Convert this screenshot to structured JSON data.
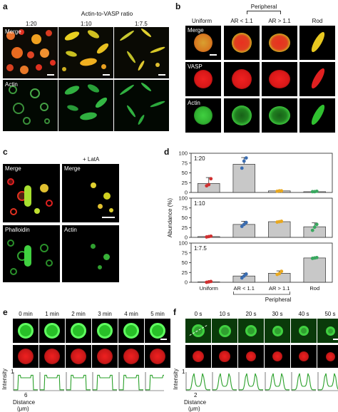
{
  "panel_a": {
    "label": "a",
    "header": "Actin-to-VASP ratio",
    "ratios": [
      "1:20",
      "1:10",
      "1:7.5"
    ],
    "row_labels": [
      "Merge",
      "Actin"
    ]
  },
  "panel_b": {
    "label": "b",
    "group_label": "Peripheral",
    "columns": [
      "Uniform",
      "AR < 1.1",
      "AR > 1.1",
      "Rod"
    ],
    "row_labels": [
      "Merge",
      "VASP",
      "Actin"
    ]
  },
  "panel_c": {
    "label": "c",
    "treatment": "+ LatA",
    "row_labels": [
      "Merge",
      "Merge",
      "Phalloidin",
      "Actin"
    ]
  },
  "panel_d": {
    "label": "d",
    "ylabel": "Abundance (%)",
    "group_label": "Peripheral"
  },
  "panel_e": {
    "label": "e",
    "times": [
      "0 min",
      "1 min",
      "2 min",
      "3 min",
      "4 min",
      "5 min"
    ],
    "ylabel": "Intensity",
    "y_tick": "1",
    "x_tick": "6",
    "xlabel": "Distance",
    "xunit": "(μm)"
  },
  "panel_f": {
    "label": "f",
    "times": [
      "0 s",
      "10 s",
      "20 s",
      "30 s",
      "40 s",
      "50 s"
    ],
    "ylabel": "Intensity",
    "y_tick": "1",
    "x_tick": "2",
    "xlabel": "Distance",
    "xunit": "(μm)"
  },
  "chart_data": {
    "type": "bar",
    "categories": [
      "Uniform",
      "AR < 1.1",
      "AR > 1.1",
      "Rod"
    ],
    "ylabel": "Abundance (%)",
    "ylim": [
      0,
      100
    ],
    "yticks": [
      0,
      25,
      50,
      75,
      100
    ],
    "grid": false,
    "subplots": [
      {
        "name": "1:20",
        "values": [
          23,
          72,
          4,
          2
        ],
        "errors": [
          15,
          17,
          1,
          1
        ],
        "points": [
          [
            17,
            20,
            35
          ],
          [
            62,
            80,
            88
          ],
          [
            3,
            4,
            4
          ],
          [
            2,
            2,
            3
          ]
        ]
      },
      {
        "name": "1:10",
        "values": [
          2,
          33,
          40,
          27
        ],
        "errors": [
          1,
          8,
          2,
          10
        ],
        "points": [
          [
            1,
            2,
            3
          ],
          [
            28,
            33,
            38
          ],
          [
            39,
            40,
            41
          ],
          [
            18,
            26,
            33
          ]
        ]
      },
      {
        "name": "1:7.5",
        "values": [
          1,
          16,
          23,
          62
        ],
        "errors": [
          1,
          7,
          6,
          2
        ],
        "points": [
          [
            0,
            1,
            2
          ],
          [
            11,
            16,
            21
          ],
          [
            20,
            22,
            28
          ],
          [
            61,
            62,
            63
          ]
        ]
      }
    ],
    "colors": {
      "Uniform": "#d03030",
      "AR < 1.1": "#3a6cb0",
      "AR > 1.1": "#e8a820",
      "Rod": "#3aa860"
    },
    "bar_color": "#c8c8c8"
  }
}
